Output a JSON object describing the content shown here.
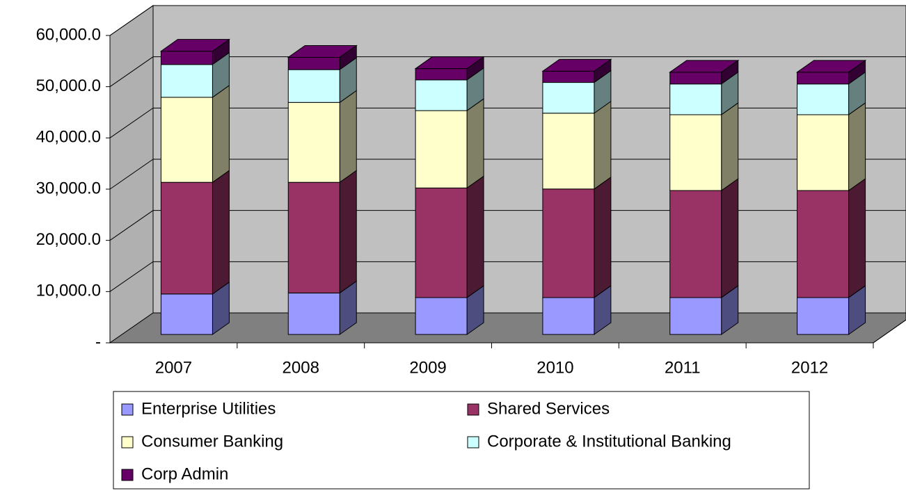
{
  "chart_data": {
    "type": "bar3d_stacked",
    "categories": [
      "2007",
      "2008",
      "2009",
      "2010",
      "2011",
      "2012"
    ],
    "series": [
      {
        "name": "Enterprise Utilities",
        "color": "#9999ff",
        "side": "#4d4d80",
        "values": [
          7900,
          8100,
          7200,
          7200,
          7200,
          7200
        ]
      },
      {
        "name": "Shared Services",
        "color": "#993366",
        "side": "#4d1a33",
        "values": [
          21800,
          21600,
          21400,
          21200,
          20900,
          20900
        ]
      },
      {
        "name": "Consumer Banking",
        "color": "#ffffcc",
        "side": "#808066",
        "values": [
          16600,
          15600,
          15100,
          14800,
          14800,
          14800
        ]
      },
      {
        "name": "Corporate & Institutional Banking",
        "color": "#ccffff",
        "side": "#668080",
        "values": [
          6400,
          6400,
          6000,
          6000,
          6000,
          6000
        ]
      },
      {
        "name": "Corp Admin",
        "color": "#660066",
        "side": "#330033",
        "values": [
          2600,
          2400,
          2200,
          2200,
          2300,
          2300
        ]
      }
    ],
    "ylim": [
      0,
      60000
    ],
    "yticks": [
      {
        "value": 0,
        "label": "-"
      },
      {
        "value": 10000,
        "label": "10,000.0"
      },
      {
        "value": 20000,
        "label": "20,000.0"
      },
      {
        "value": 30000,
        "label": "30,000.0"
      },
      {
        "value": 40000,
        "label": "40,000.0"
      },
      {
        "value": 50000,
        "label": "50,000.0"
      },
      {
        "value": 60000,
        "label": "60,000.0"
      }
    ],
    "grid": true
  }
}
